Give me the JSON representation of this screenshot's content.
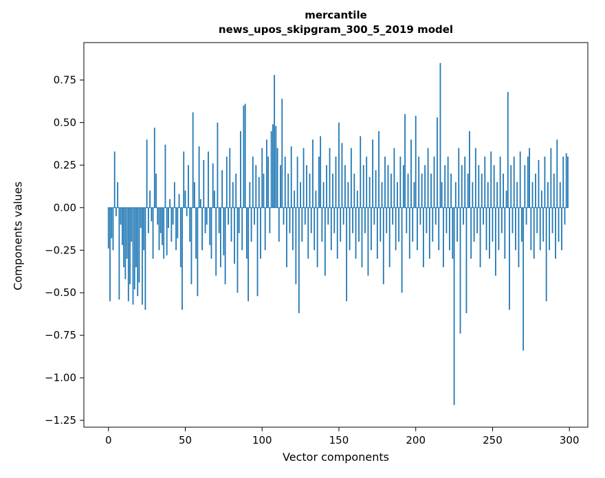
{
  "chart_data": {
    "type": "bar",
    "title_line1": "mercantile",
    "title_line2": "news_upos_skipgram_300_5_2019 model",
    "xlabel": "Vector components",
    "ylabel": "Components values",
    "x_ticks": [
      0,
      50,
      100,
      150,
      200,
      250,
      300
    ],
    "y_ticks": [
      -1.25,
      -1.0,
      -0.75,
      -0.5,
      -0.25,
      0.0,
      0.25,
      0.5,
      0.75
    ],
    "xlim": [
      -16,
      312
    ],
    "ylim": [
      -1.29,
      0.97
    ],
    "bar_color": "#1f77b4",
    "legend": "none",
    "grid": false,
    "x_start": 0,
    "values": [
      -0.24,
      -0.55,
      -0.18,
      -0.25,
      0.33,
      -0.05,
      0.15,
      -0.54,
      -0.1,
      -0.22,
      -0.35,
      -0.42,
      -0.3,
      -0.55,
      -0.45,
      -0.2,
      -0.57,
      -0.48,
      -0.35,
      -0.52,
      -0.44,
      -0.12,
      -0.57,
      -0.25,
      -0.6,
      0.4,
      -0.15,
      0.1,
      -0.08,
      -0.3,
      0.47,
      0.2,
      -0.1,
      -0.25,
      -0.15,
      -0.22,
      -0.3,
      0.37,
      -0.28,
      -0.12,
      0.05,
      -0.2,
      -0.1,
      0.15,
      -0.25,
      -0.18,
      0.08,
      -0.35,
      -0.6,
      0.33,
      0.1,
      -0.05,
      0.25,
      -0.2,
      -0.45,
      0.56,
      0.15,
      -0.3,
      -0.52,
      0.36,
      0.05,
      -0.25,
      0.28,
      -0.15,
      -0.1,
      0.33,
      -0.22,
      -0.3,
      0.26,
      0.1,
      -0.4,
      0.5,
      -0.15,
      -0.35,
      0.22,
      -0.28,
      -0.45,
      0.3,
      -0.1,
      0.35,
      -0.2,
      0.15,
      -0.33,
      0.2,
      -0.5,
      -0.15,
      0.45,
      -0.25,
      0.6,
      0.61,
      -0.3,
      -0.55,
      0.15,
      -0.2,
      0.3,
      -0.1,
      0.25,
      -0.52,
      0.18,
      -0.3,
      0.35,
      0.2,
      -0.25,
      0.4,
      0.3,
      -0.15,
      0.45,
      0.49,
      0.78,
      0.48,
      0.35,
      -0.2,
      0.25,
      0.64,
      -0.1,
      0.3,
      -0.35,
      0.2,
      -0.15,
      0.36,
      -0.25,
      0.1,
      -0.45,
      0.3,
      -0.62,
      0.15,
      -0.2,
      0.35,
      -0.1,
      0.25,
      -0.3,
      0.2,
      -0.15,
      0.4,
      -0.25,
      0.1,
      -0.35,
      0.3,
      0.42,
      -0.2,
      0.15,
      -0.4,
      0.25,
      -0.1,
      0.35,
      -0.25,
      0.2,
      -0.15,
      0.3,
      -0.3,
      0.5,
      -0.2,
      0.38,
      -0.1,
      0.25,
      -0.55,
      0.15,
      -0.25,
      0.35,
      -0.15,
      0.2,
      -0.3,
      0.1,
      -0.2,
      0.42,
      -0.35,
      0.25,
      -0.15,
      0.3,
      -0.4,
      0.18,
      -0.25,
      0.4,
      -0.1,
      0.22,
      -0.3,
      0.45,
      -0.2,
      0.15,
      -0.45,
      0.3,
      -0.15,
      0.25,
      -0.35,
      0.2,
      -0.1,
      0.35,
      -0.25,
      0.15,
      -0.2,
      0.3,
      -0.5,
      0.25,
      0.55,
      -0.15,
      0.2,
      -0.3,
      0.4,
      -0.2,
      0.15,
      0.54,
      -0.25,
      0.3,
      -0.1,
      0.2,
      -0.35,
      0.25,
      -0.15,
      0.35,
      -0.3,
      0.2,
      -0.2,
      0.3,
      -0.1,
      0.53,
      -0.25,
      0.85,
      0.15,
      -0.35,
      0.25,
      -0.15,
      0.3,
      -0.25,
      0.2,
      -0.3,
      -1.16,
      0.15,
      -0.2,
      0.35,
      -0.74,
      0.25,
      -0.1,
      0.3,
      -0.62,
      0.2,
      0.45,
      -0.3,
      0.15,
      -0.2,
      0.35,
      -0.15,
      0.25,
      -0.35,
      0.2,
      -0.1,
      0.3,
      -0.25,
      0.15,
      -0.3,
      0.33,
      -0.2,
      0.25,
      -0.4,
      0.15,
      -0.25,
      0.3,
      -0.15,
      0.2,
      -0.3,
      0.1,
      0.68,
      -0.6,
      0.25,
      -0.15,
      0.3,
      -0.25,
      0.15,
      -0.35,
      0.33,
      -0.2,
      -0.84,
      0.25,
      -0.1,
      0.3,
      0.35,
      -0.25,
      0.15,
      -0.3,
      0.2,
      -0.15,
      0.28,
      -0.25,
      0.1,
      -0.2,
      0.3,
      -0.55,
      0.15,
      -0.25,
      0.35,
      -0.15,
      0.2,
      -0.3,
      0.4,
      -0.2,
      0.15,
      -0.25,
      0.3,
      -0.1,
      0.32,
      0.3
    ]
  }
}
